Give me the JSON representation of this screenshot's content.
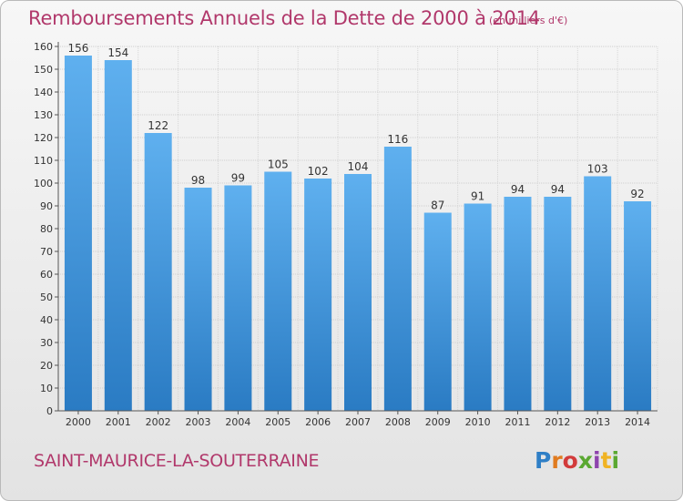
{
  "title": "Remboursements Annuels de la Dette de 2000 à 2014",
  "subtitle": "(en milliers d'€)",
  "commune": "SAINT-MAURICE-LA-SOUTERRAINE",
  "logo": {
    "letters": [
      "P",
      "r",
      "o",
      "x",
      "i",
      "t",
      "i"
    ],
    "colors": [
      "#2f7fc6",
      "#e07b1f",
      "#d23b3b",
      "#5aa831",
      "#8e44ad",
      "#f0b323",
      "#5aa831"
    ]
  },
  "chart_data": {
    "type": "bar",
    "title": "Remboursements Annuels de la Dette de 2000 à 2014",
    "xlabel": "",
    "ylabel": "",
    "categories": [
      "2000",
      "2001",
      "2002",
      "2003",
      "2004",
      "2005",
      "2006",
      "2007",
      "2008",
      "2009",
      "2010",
      "2011",
      "2012",
      "2013",
      "2014"
    ],
    "values": [
      156,
      154,
      122,
      98,
      99,
      105,
      102,
      104,
      116,
      87,
      91,
      94,
      94,
      103,
      92
    ],
    "ylim": [
      0,
      160
    ],
    "yticks": [
      0,
      10,
      20,
      30,
      40,
      50,
      60,
      70,
      80,
      90,
      100,
      110,
      120,
      130,
      140,
      150,
      160
    ],
    "grid": true,
    "bar_color": "#5aabeb",
    "bar_color_dark": "#2b7cc4"
  }
}
